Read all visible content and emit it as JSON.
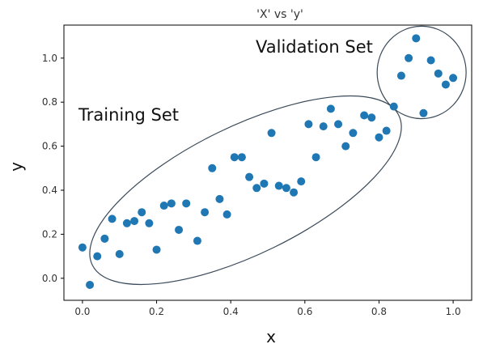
{
  "chart_data": {
    "type": "scatter",
    "title": "'X' vs 'y'",
    "xlabel": "x",
    "ylabel": "y",
    "xlim": [
      -0.05,
      1.05
    ],
    "ylim": [
      -0.1,
      1.15
    ],
    "x_ticks": [
      "0.0",
      "0.2",
      "0.4",
      "0.6",
      "0.8",
      "1.0"
    ],
    "y_ticks": [
      "0.0",
      "0.2",
      "0.4",
      "0.6",
      "0.8",
      "1.0"
    ],
    "x_tick_values": [
      0.0,
      0.2,
      0.4,
      0.6,
      0.8,
      1.0
    ],
    "y_tick_values": [
      0.0,
      0.2,
      0.4,
      0.6,
      0.8,
      1.0
    ],
    "grid": false,
    "marker_color": "#1f77b4",
    "annotations": [
      "Training Set",
      "Validation Set"
    ],
    "series": [
      {
        "points": [
          [
            0.0,
            0.14
          ],
          [
            0.02,
            -0.03
          ],
          [
            0.04,
            0.1
          ],
          [
            0.06,
            0.18
          ],
          [
            0.08,
            0.27
          ],
          [
            0.1,
            0.11
          ],
          [
            0.12,
            0.25
          ],
          [
            0.14,
            0.26
          ],
          [
            0.16,
            0.3
          ],
          [
            0.18,
            0.25
          ],
          [
            0.2,
            0.13
          ],
          [
            0.22,
            0.33
          ],
          [
            0.24,
            0.34
          ],
          [
            0.26,
            0.22
          ],
          [
            0.28,
            0.34
          ],
          [
            0.31,
            0.17
          ],
          [
            0.33,
            0.3
          ],
          [
            0.35,
            0.5
          ],
          [
            0.37,
            0.36
          ],
          [
            0.39,
            0.29
          ],
          [
            0.41,
            0.55
          ],
          [
            0.43,
            0.55
          ],
          [
            0.45,
            0.46
          ],
          [
            0.47,
            0.41
          ],
          [
            0.49,
            0.43
          ],
          [
            0.51,
            0.66
          ],
          [
            0.53,
            0.42
          ],
          [
            0.55,
            0.41
          ],
          [
            0.57,
            0.39
          ],
          [
            0.59,
            0.44
          ],
          [
            0.61,
            0.7
          ],
          [
            0.63,
            0.55
          ],
          [
            0.65,
            0.69
          ],
          [
            0.67,
            0.77
          ],
          [
            0.69,
            0.7
          ],
          [
            0.71,
            0.6
          ],
          [
            0.73,
            0.66
          ],
          [
            0.76,
            0.74
          ],
          [
            0.78,
            0.73
          ],
          [
            0.8,
            0.64
          ],
          [
            0.82,
            0.67
          ]
        ]
      },
      {
        "points": [
          [
            0.84,
            0.78
          ],
          [
            0.86,
            0.92
          ],
          [
            0.88,
            1.0
          ],
          [
            0.9,
            1.09
          ],
          [
            0.92,
            0.75
          ],
          [
            0.94,
            0.99
          ],
          [
            0.96,
            0.93
          ],
          [
            0.98,
            0.88
          ],
          [
            1.0,
            0.91
          ]
        ]
      }
    ],
    "enclosures": [
      {
        "label_index": 0,
        "center": [
          0.44,
          0.4
        ],
        "rx": 0.46,
        "ry": 0.29,
        "angle_deg": -26
      },
      {
        "label_index": 1,
        "center": [
          0.915,
          0.935
        ],
        "rx": 0.12,
        "ry": 0.21,
        "angle_deg": 0
      }
    ]
  }
}
